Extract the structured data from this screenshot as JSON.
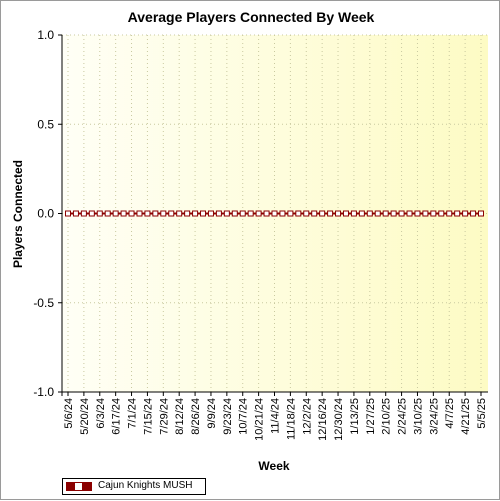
{
  "chart_data": {
    "type": "line",
    "title": "Average Players Connected By Week",
    "xlabel": "Week",
    "ylabel": "Players Connected",
    "ylim": [
      -1.0,
      1.0
    ],
    "y_ticks": [
      "1.0",
      "0.5",
      "0.0",
      "-0.5",
      "-1.0"
    ],
    "x_tick_labels": [
      "5/6/24",
      "5/20/24",
      "6/3/24",
      "6/17/24",
      "7/1/24",
      "7/15/24",
      "7/29/24",
      "8/12/24",
      "8/26/24",
      "9/9/24",
      "9/23/24",
      "10/7/24",
      "10/21/24",
      "11/4/24",
      "11/18/24",
      "12/2/24",
      "12/16/24",
      "12/30/24",
      "1/13/25",
      "1/27/25",
      "2/10/25",
      "2/24/25",
      "3/10/25",
      "3/24/25",
      "4/7/25",
      "4/21/25",
      "5/5/25"
    ],
    "x": [
      "5/6/24",
      "5/13/24",
      "5/20/24",
      "5/27/24",
      "6/3/24",
      "6/10/24",
      "6/17/24",
      "6/24/24",
      "7/1/24",
      "7/8/24",
      "7/15/24",
      "7/22/24",
      "7/29/24",
      "8/5/24",
      "8/12/24",
      "8/19/24",
      "8/26/24",
      "9/2/24",
      "9/9/24",
      "9/16/24",
      "9/23/24",
      "9/30/24",
      "10/7/24",
      "10/14/24",
      "10/21/24",
      "10/28/24",
      "11/4/24",
      "11/11/24",
      "11/18/24",
      "11/25/24",
      "12/2/24",
      "12/9/24",
      "12/16/24",
      "12/23/24",
      "12/30/24",
      "1/6/25",
      "1/13/25",
      "1/20/25",
      "1/27/25",
      "2/3/25",
      "2/10/25",
      "2/17/25",
      "2/24/25",
      "3/3/25",
      "3/10/25",
      "3/17/25",
      "3/24/25",
      "3/31/25",
      "4/7/25",
      "4/14/25",
      "4/21/25",
      "4/28/25",
      "5/5/25"
    ],
    "series": [
      {
        "name": "Cajun Knights MUSH",
        "color": "#8b0000",
        "values": [
          0,
          0,
          0,
          0,
          0,
          0,
          0,
          0,
          0,
          0,
          0,
          0,
          0,
          0,
          0,
          0,
          0,
          0,
          0,
          0,
          0,
          0,
          0,
          0,
          0,
          0,
          0,
          0,
          0,
          0,
          0,
          0,
          0,
          0,
          0,
          0,
          0,
          0,
          0,
          0,
          0,
          0,
          0,
          0,
          0,
          0,
          0,
          0,
          0,
          0,
          0,
          0,
          0
        ]
      }
    ],
    "grid": true,
    "legend_position": "bottom-left",
    "background": "yellow-gradient"
  }
}
